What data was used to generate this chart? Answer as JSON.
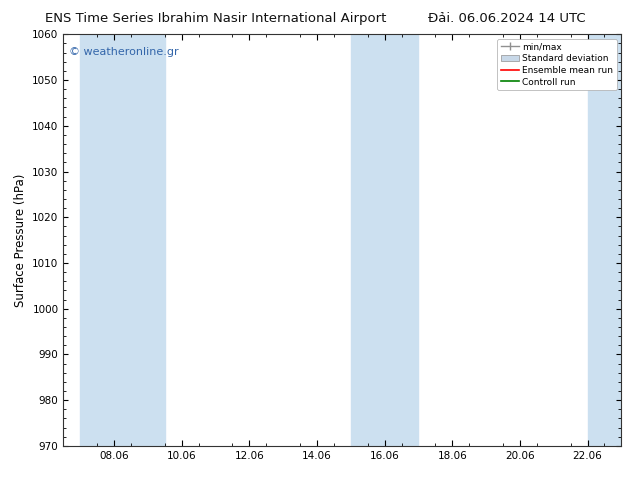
{
  "title_left": "ENS Time Series Ibrahim Nasir International Airport",
  "title_right": "Đải. 06.06.2024 14 UTC",
  "ylabel": "Surface Pressure (hPa)",
  "ylim": [
    970,
    1060
  ],
  "yticks": [
    970,
    980,
    990,
    1000,
    1010,
    1020,
    1030,
    1040,
    1050,
    1060
  ],
  "x_labels": [
    "08.06",
    "10.06",
    "12.06",
    "14.06",
    "16.06",
    "18.06",
    "20.06",
    "22.06"
  ],
  "x_tick_positions": [
    8,
    10,
    12,
    14,
    16,
    18,
    20,
    22
  ],
  "x_min": 6.5,
  "x_max": 23.0,
  "shaded_bands": [
    {
      "x_start": 7.0,
      "x_end": 9.5
    },
    {
      "x_start": 15.0,
      "x_end": 17.0
    },
    {
      "x_start": 22.0,
      "x_end": 23.0
    }
  ],
  "shaded_color": "#cce0f0",
  "watermark": "© weatheronline.gr",
  "background_color": "#ffffff",
  "plot_bg_color": "#ffffff",
  "legend_entries": [
    "min/max",
    "Standard deviation",
    "Ensemble mean run",
    "Controll run"
  ],
  "ensemble_mean_color": "#ff0000",
  "control_run_color": "#008000",
  "minmax_color": "#909090",
  "stddev_color": "#c8d8e8",
  "title_fontsize": 9.5,
  "tick_fontsize": 7.5,
  "label_fontsize": 8.5,
  "watermark_color": "#3366aa"
}
